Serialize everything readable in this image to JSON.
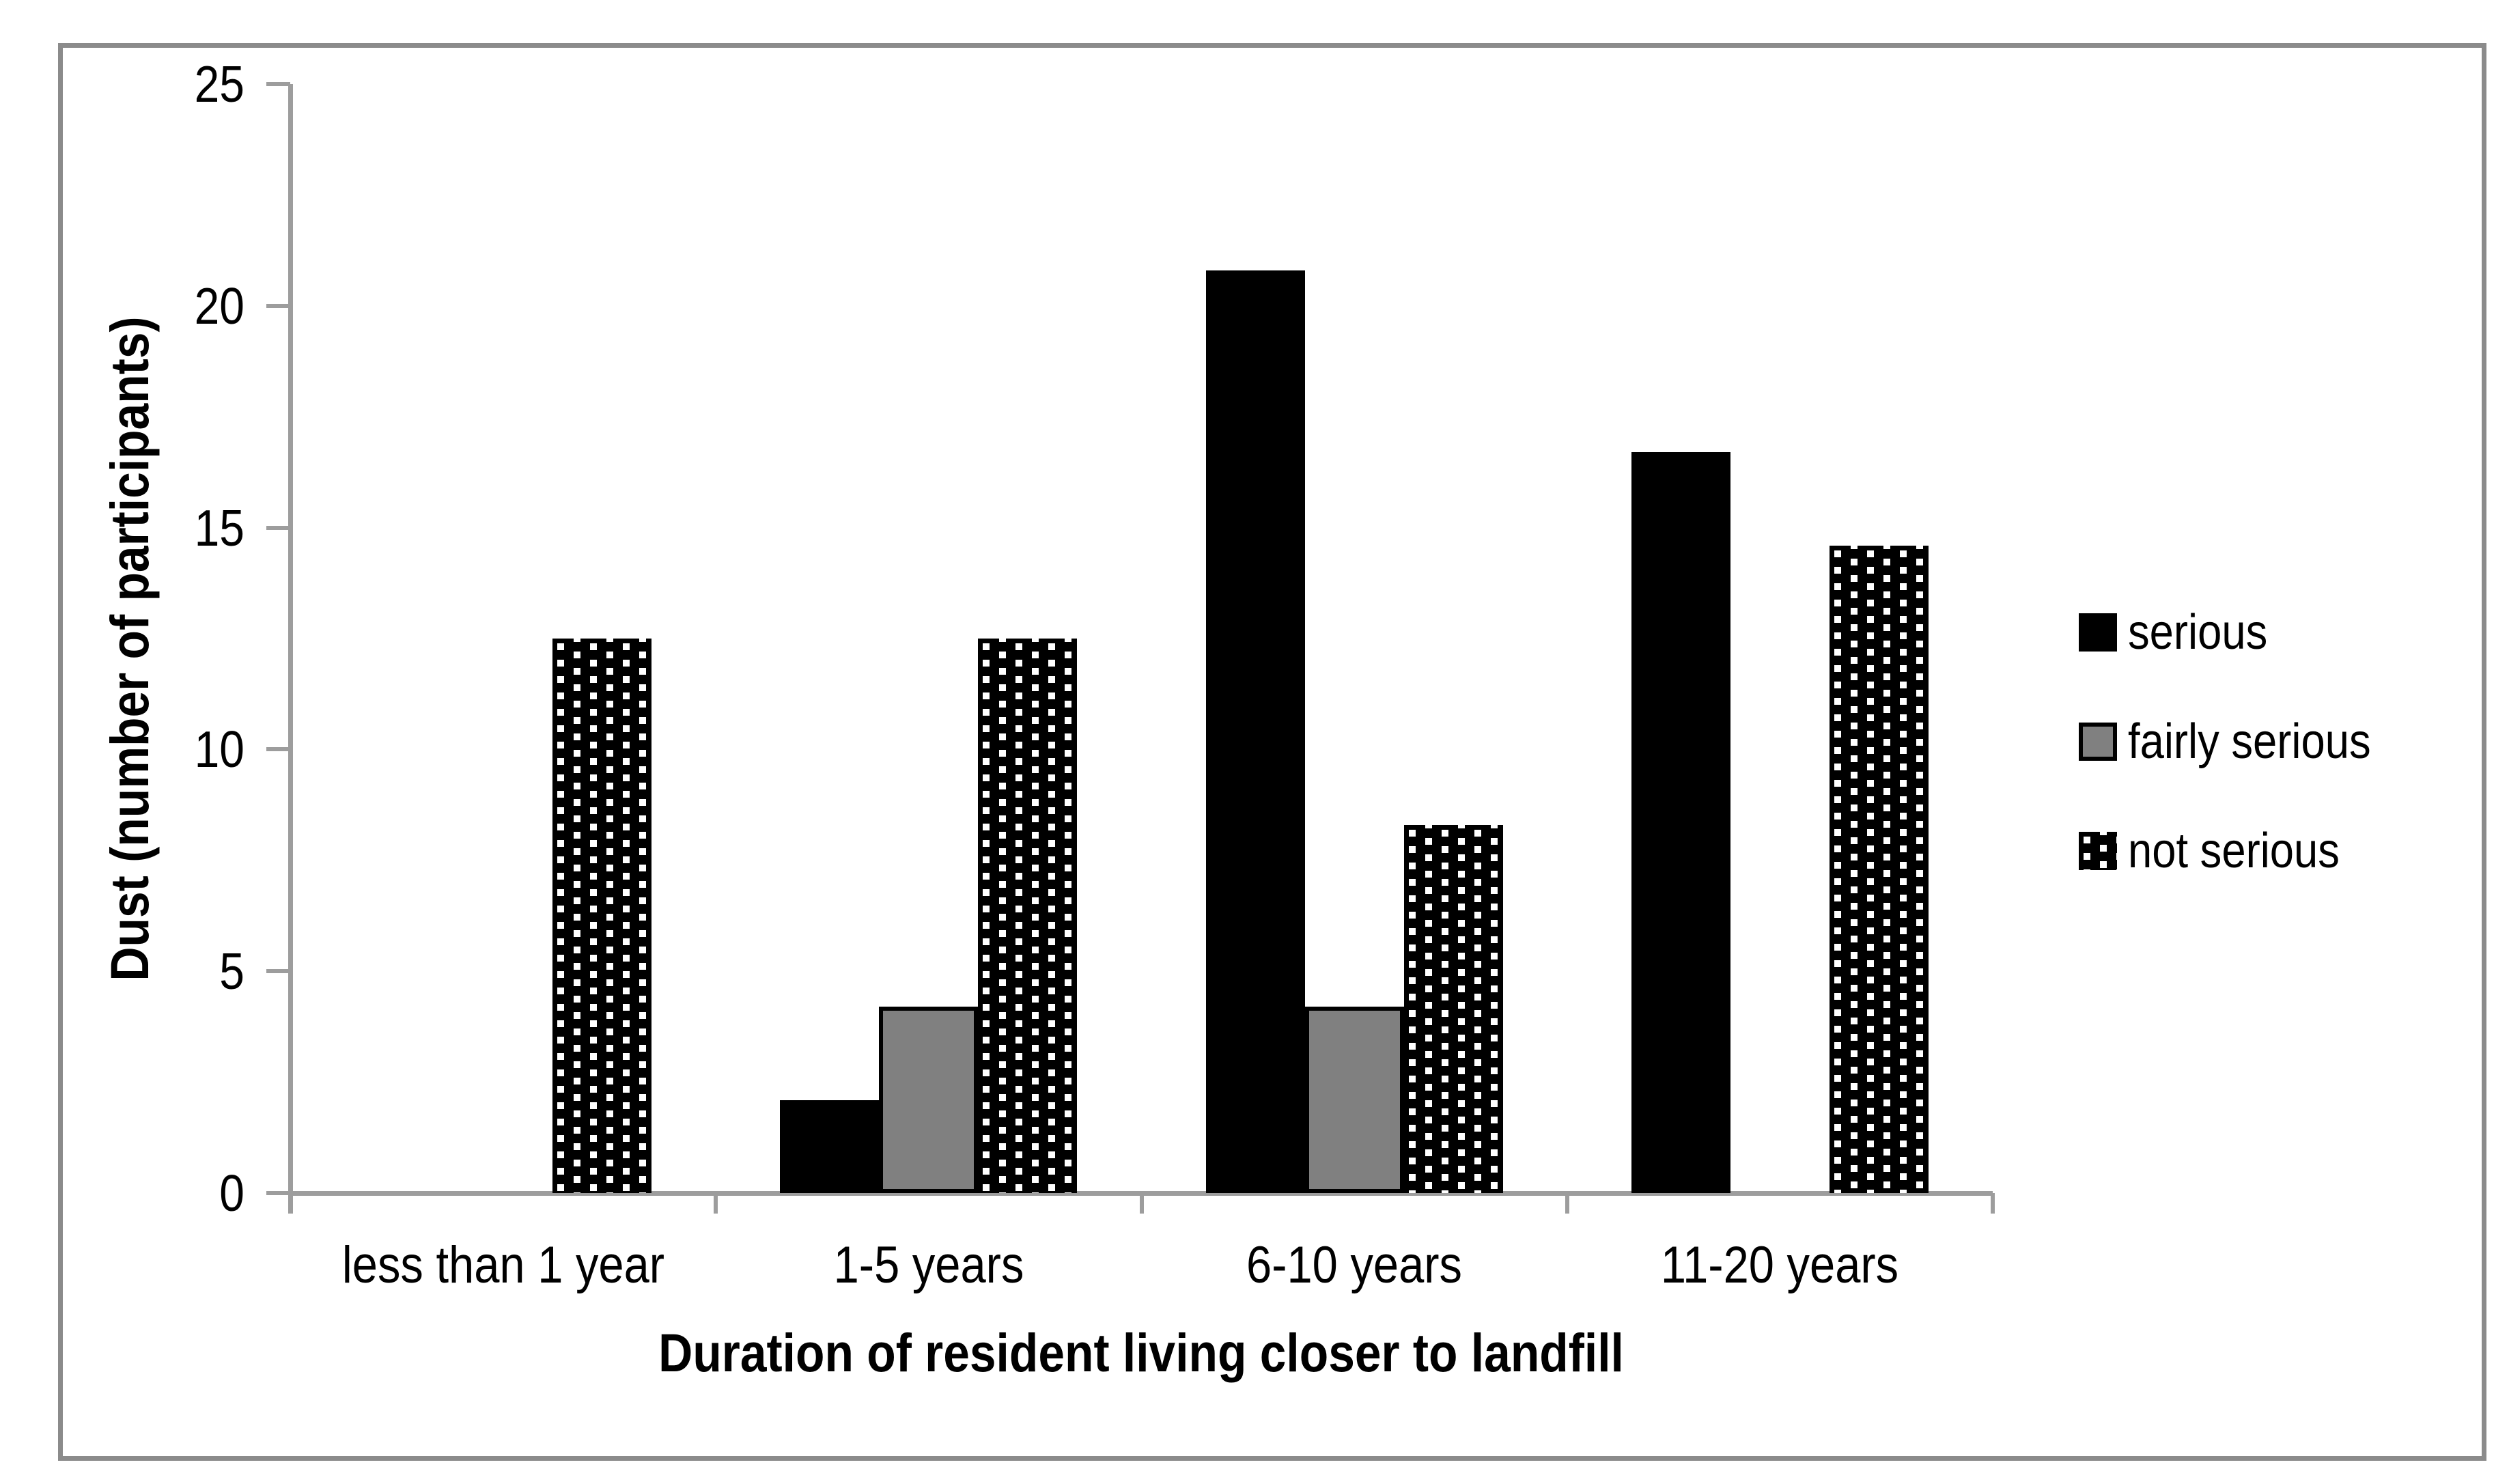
{
  "chart_data": {
    "type": "bar",
    "title": "",
    "xlabel": "Duration of resident living closer to landfill",
    "ylabel": "Dust (number of participants)",
    "categories": [
      "less than 1 year",
      "1-5 years",
      "6-10 years",
      "11-20 years"
    ],
    "series": [
      {
        "name": "serious",
        "style": "solid-black",
        "values": [
          0,
          2.1,
          20.8,
          16.7
        ]
      },
      {
        "name": "fairly serious",
        "style": "gray-black-border",
        "values": [
          0,
          4.2,
          4.2,
          0
        ]
      },
      {
        "name": "not serious",
        "style": "black-with-white-dots",
        "values": [
          12.5,
          12.5,
          8.3,
          14.6
        ]
      }
    ],
    "ylim": [
      0,
      25
    ],
    "yticks": [
      0,
      5,
      10,
      15,
      20,
      25
    ],
    "grid": false,
    "legend_position": "right"
  },
  "colors": {
    "bar_black": "#000000",
    "bar_gray": "#808080",
    "dot_white": "#ffffff",
    "axis_gray": "#9d9d9d",
    "frame_gray": "#8b8b8b",
    "text": "#000000",
    "background": "#ffffff"
  }
}
